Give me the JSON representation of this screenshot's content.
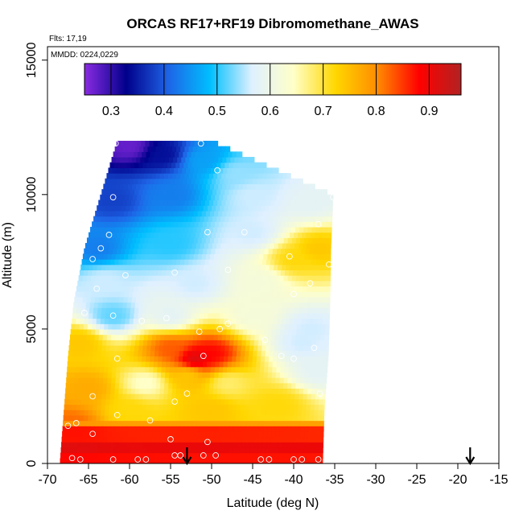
{
  "chart_data": {
    "type": "heatmap",
    "title": "ORCAS RF17+RF19 Dibromomethane_AWAS",
    "annotations": {
      "flights": "Flts: 17,19",
      "dates": "MMDD: 0224,0229"
    },
    "xlabel": "Latitude (deg N)",
    "ylabel": "Altitude (m)",
    "xlim": [
      -70,
      -15
    ],
    "ylim": [
      0,
      15500
    ],
    "xticks": [
      -70,
      -65,
      -60,
      -55,
      -50,
      -45,
      -40,
      -35,
      -30,
      -25,
      -20,
      -15
    ],
    "yticks": [
      0,
      5000,
      10000,
      15000
    ],
    "colorbar": {
      "range": [
        0.25,
        0.96
      ],
      "ticks": [
        0.3,
        0.4,
        0.5,
        0.6,
        0.7,
        0.8,
        0.9
      ],
      "colors": [
        "#8a2be2",
        "#00008b",
        "#1e64e6",
        "#00bfff",
        "#dff0ff",
        "#ffffc8",
        "#ffd700",
        "#ff8c00",
        "#ff0000",
        "#b22222"
      ]
    },
    "x_range_by_altitude": [
      {
        "alt": 0,
        "xmin": -68.5,
        "xmax": -36.5
      },
      {
        "alt": 2000,
        "xmin": -68,
        "xmax": -36.3
      },
      {
        "alt": 4000,
        "xmin": -67.5,
        "xmax": -35.8
      },
      {
        "alt": 6000,
        "xmin": -66.8,
        "xmax": -35.6
      },
      {
        "alt": 8000,
        "xmin": -65.5,
        "xmax": -35.5
      },
      {
        "alt": 10000,
        "xmin": -63.5,
        "xmax": -35.2
      },
      {
        "alt": 12000,
        "xmin": -61.5,
        "xmax": -50
      }
    ],
    "field_blobs": [
      {
        "lat": -52,
        "alt": 3900,
        "value": 0.92
      },
      {
        "lat": -50,
        "alt": 4100,
        "value": 0.88
      },
      {
        "lat": -55,
        "alt": 4300,
        "value": 0.83
      },
      {
        "lat": -53,
        "alt": 3300,
        "value": 0.74
      },
      {
        "lat": -67,
        "alt": 1500,
        "value": 0.82
      },
      {
        "lat": -65,
        "alt": 2800,
        "value": 0.77
      },
      {
        "lat": -66,
        "alt": 4500,
        "value": 0.74
      },
      {
        "lat": -48,
        "alt": 3000,
        "value": 0.68
      },
      {
        "lat": -58,
        "alt": 3000,
        "value": 0.64
      },
      {
        "lat": -60,
        "alt": 2000,
        "value": 0.72
      },
      {
        "lat": -42,
        "alt": 2200,
        "value": 0.72
      },
      {
        "lat": -62,
        "alt": 5500,
        "value": 0.52
      },
      {
        "lat": -55,
        "alt": 5500,
        "value": 0.58
      },
      {
        "lat": -45,
        "alt": 5500,
        "value": 0.62
      },
      {
        "lat": -38,
        "alt": 5000,
        "value": 0.56
      },
      {
        "lat": -52,
        "alt": 6700,
        "value": 0.56
      },
      {
        "lat": -63,
        "alt": 6800,
        "value": 0.56
      },
      {
        "lat": -44,
        "alt": 6800,
        "value": 0.62
      },
      {
        "lat": -40,
        "alt": 7600,
        "value": 0.72
      },
      {
        "lat": -37,
        "alt": 8000,
        "value": 0.74
      },
      {
        "lat": -55,
        "alt": 8200,
        "value": 0.5
      },
      {
        "lat": -45,
        "alt": 8600,
        "value": 0.56
      },
      {
        "lat": -64,
        "alt": 8000,
        "value": 0.43
      },
      {
        "lat": -62,
        "alt": 9800,
        "value": 0.38
      },
      {
        "lat": -55,
        "alt": 10000,
        "value": 0.43
      },
      {
        "lat": -45,
        "alt": 10000,
        "value": 0.56
      },
      {
        "lat": -38,
        "alt": 9800,
        "value": 0.58
      },
      {
        "lat": -60,
        "alt": 11800,
        "value": 0.27
      },
      {
        "lat": -56,
        "alt": 11500,
        "value": 0.34
      },
      {
        "lat": -51,
        "alt": 11300,
        "value": 0.46
      },
      {
        "lat": -47,
        "alt": 10800,
        "value": 0.54
      },
      {
        "lat": -37,
        "alt": 3500,
        "value": 0.58
      },
      {
        "lat": -39,
        "alt": 4500,
        "value": 0.56
      },
      {
        "lat": -50,
        "alt": 2000,
        "value": 0.74
      }
    ],
    "bands": [
      {
        "alt_min": 0,
        "alt_max": 400,
        "value": 0.87
      },
      {
        "alt_min": 400,
        "alt_max": 900,
        "value": 0.9
      },
      {
        "alt_min": 900,
        "alt_max": 1400,
        "value": 0.86
      },
      {
        "alt_min": 1400,
        "alt_max": 1700,
        "value": 0.78
      }
    ],
    "sample_points": [
      {
        "lat": -61.7,
        "alt": 11900
      },
      {
        "lat": -51.3,
        "alt": 11900
      },
      {
        "lat": -49.3,
        "alt": 10900
      },
      {
        "lat": -62.0,
        "alt": 9900
      },
      {
        "lat": -35.2,
        "alt": 9900
      },
      {
        "lat": -37.0,
        "alt": 8900
      },
      {
        "lat": -62.5,
        "alt": 8500
      },
      {
        "lat": -50.5,
        "alt": 8600
      },
      {
        "lat": -46.0,
        "alt": 8600
      },
      {
        "lat": -63.5,
        "alt": 8000
      },
      {
        "lat": -64.5,
        "alt": 7600
      },
      {
        "lat": -40.5,
        "alt": 7700
      },
      {
        "lat": -35.7,
        "alt": 7400
      },
      {
        "lat": -60.5,
        "alt": 7000
      },
      {
        "lat": -54.5,
        "alt": 7100
      },
      {
        "lat": -48.0,
        "alt": 7200
      },
      {
        "lat": -38.0,
        "alt": 6700
      },
      {
        "lat": -64.0,
        "alt": 6500
      },
      {
        "lat": -40.0,
        "alt": 6300
      },
      {
        "lat": -65.5,
        "alt": 5600
      },
      {
        "lat": -62.0,
        "alt": 5500
      },
      {
        "lat": -58.5,
        "alt": 5300
      },
      {
        "lat": -55.5,
        "alt": 5400
      },
      {
        "lat": -48.0,
        "alt": 5200
      },
      {
        "lat": -51.5,
        "alt": 4900
      },
      {
        "lat": -49.0,
        "alt": 5000
      },
      {
        "lat": -43.5,
        "alt": 4600
      },
      {
        "lat": -37.5,
        "alt": 4300
      },
      {
        "lat": -51.0,
        "alt": 4000
      },
      {
        "lat": -41.5,
        "alt": 4000
      },
      {
        "lat": -40.0,
        "alt": 3900
      },
      {
        "lat": -61.5,
        "alt": 3900
      },
      {
        "lat": -36.8,
        "alt": 2600
      },
      {
        "lat": -64.5,
        "alt": 2500
      },
      {
        "lat": -53.0,
        "alt": 2600
      },
      {
        "lat": -54.5,
        "alt": 2300
      },
      {
        "lat": -61.5,
        "alt": 1800
      },
      {
        "lat": -66.5,
        "alt": 1500
      },
      {
        "lat": -67.5,
        "alt": 1400
      },
      {
        "lat": -57.5,
        "alt": 1600
      },
      {
        "lat": -64.5,
        "alt": 1100
      },
      {
        "lat": -55.0,
        "alt": 900
      },
      {
        "lat": -50.5,
        "alt": 800
      },
      {
        "lat": -67.0,
        "alt": 200
      },
      {
        "lat": -66.0,
        "alt": 150
      },
      {
        "lat": -62.0,
        "alt": 150
      },
      {
        "lat": -59.0,
        "alt": 150
      },
      {
        "lat": -58.0,
        "alt": 150
      },
      {
        "lat": -54.5,
        "alt": 300
      },
      {
        "lat": -53.8,
        "alt": 300
      },
      {
        "lat": -51.0,
        "alt": 300
      },
      {
        "lat": -49.5,
        "alt": 300
      },
      {
        "lat": -44.0,
        "alt": 150
      },
      {
        "lat": -43.0,
        "alt": 150
      },
      {
        "lat": -40.0,
        "alt": 150
      },
      {
        "lat": -39.0,
        "alt": 150
      },
      {
        "lat": -37.0,
        "alt": 150
      }
    ],
    "arrows": [
      {
        "lat": -53,
        "label": "arrow"
      },
      {
        "lat": -18.5,
        "label": "arrow"
      }
    ]
  }
}
